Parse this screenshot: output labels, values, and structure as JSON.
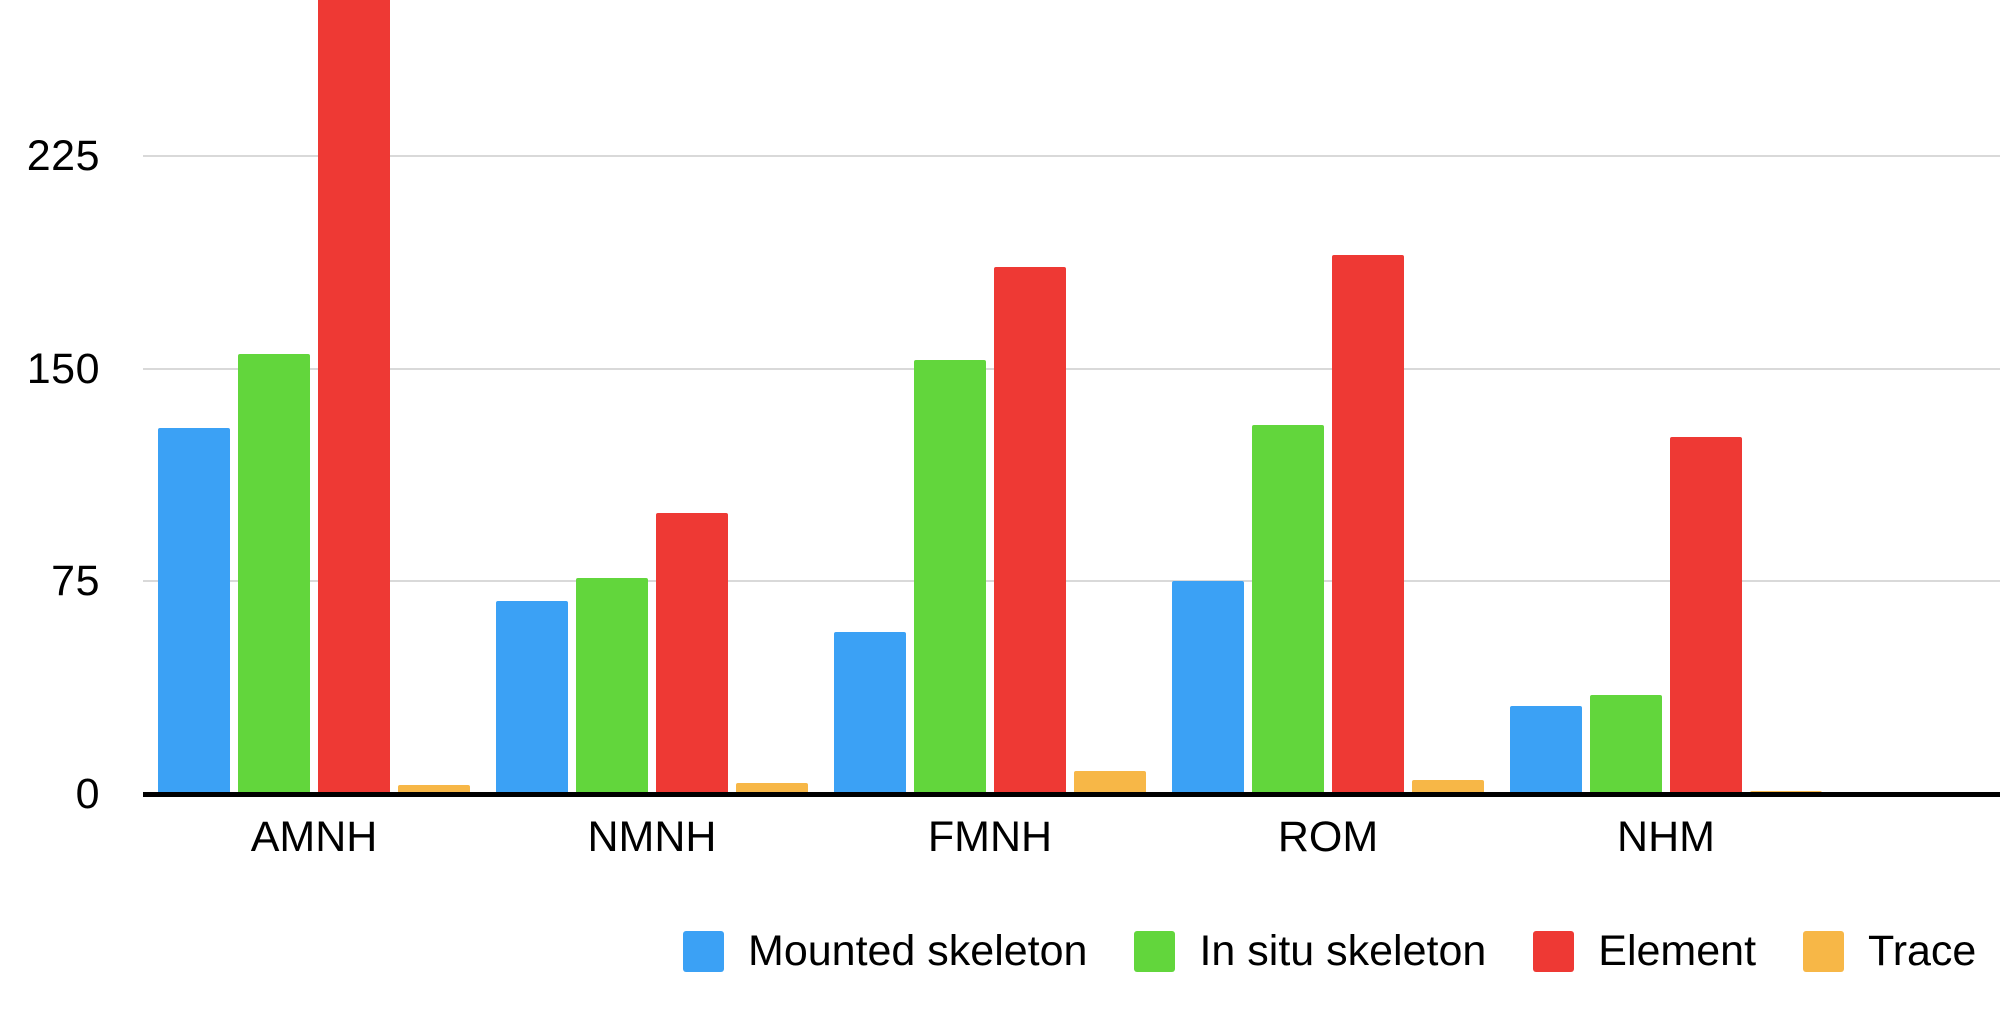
{
  "chart_data": {
    "type": "bar",
    "title": "",
    "xlabel": "",
    "ylabel": "",
    "categories": [
      "AMNH",
      "NMNH",
      "FMNH",
      "ROM",
      "NHM"
    ],
    "series": [
      {
        "name": "Mounted skeleton",
        "color": "#3BA1F5",
        "values": [
          129,
          68,
          57,
          75,
          31
        ]
      },
      {
        "name": "In situ skeleton",
        "color": "#62D63C",
        "values": [
          155,
          76,
          153,
          130,
          35
        ]
      },
      {
        "name": "Element",
        "color": "#EE3934",
        "values": [
          300,
          99,
          186,
          190,
          126
        ]
      },
      {
        "name": "Trace",
        "color": "#F7B747",
        "values": [
          3,
          4,
          8,
          5,
          1
        ]
      }
    ],
    "y_ticks": [
      0,
      75,
      150,
      225
    ],
    "y_visible_max": 280,
    "grid": true,
    "legend_position": "bottom",
    "annotations": [
      "AMNH Element bar is clipped at the top edge of the image (visible portion reaches ≈280)"
    ],
    "colors": {
      "gridline": "#d9d9d9",
      "axis": "#000000",
      "text": "#000000",
      "background": "#ffffff"
    }
  }
}
